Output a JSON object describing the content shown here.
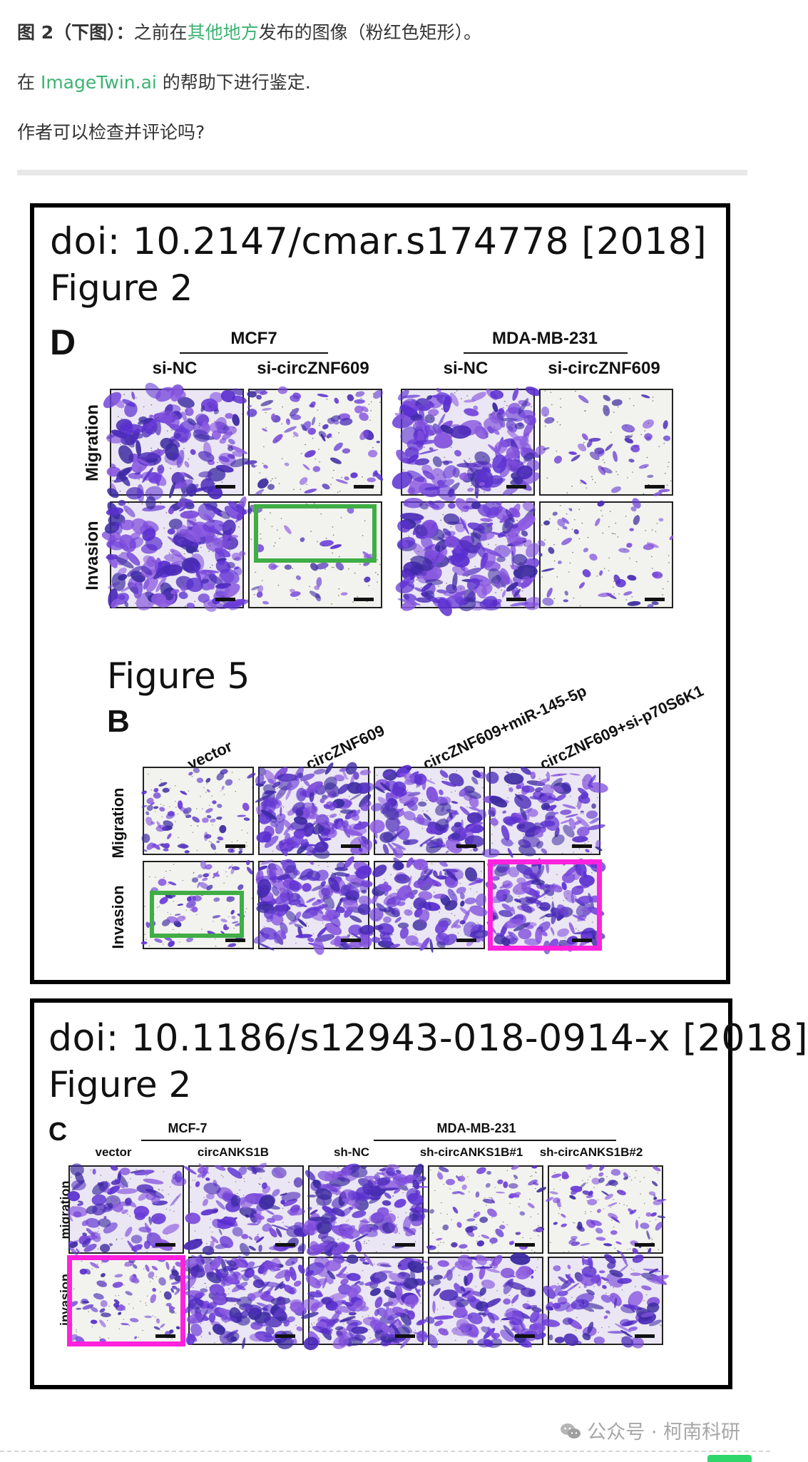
{
  "article": {
    "line1_bold": "图 2（下图）：",
    "line1_pre": "之前在",
    "line1_link": "其他地方",
    "line1_post": "发布的图像（粉红色矩形）。",
    "line2_pre": "在 ",
    "line2_link": "ImageTwin.ai",
    "line2_post": " 的帮助下进行鉴定.",
    "line3": "作者可以检查并评论吗?",
    "link_color": "#3cb371"
  },
  "panel1": {
    "doi": "doi: 10.2147/cmar.s174778 [2018]",
    "fig2_title": "Figure 2",
    "fig2_letter": "D",
    "groups": [
      "MCF7",
      "MDA-MB-231"
    ],
    "cols": [
      "si-NC",
      "si-circZNF609",
      "si-NC",
      "si-circZNF609"
    ],
    "rows": [
      "Migration",
      "Invasion"
    ],
    "fig5_title": "Figure 5",
    "fig5_letter": "B",
    "fig5_cols": [
      "vector",
      "circZNF609",
      "circZNF609+miR-145-5p",
      "circZNF609+si-p70S6K1"
    ],
    "fig5_rows": [
      "Migration",
      "Invasion"
    ]
  },
  "panel2": {
    "doi": "doi: 10.1186/s12943-018-0914-x [2018]",
    "fig_title": "Figure 2",
    "letter": "C",
    "groups": [
      "MCF-7",
      "MDA-MB-231"
    ],
    "cols": [
      "vector",
      "circANKS1B",
      "sh-NC",
      "sh-circANKS1B#1",
      "sh-circANKS1B#2"
    ],
    "rows": [
      "migration",
      "invasion"
    ]
  },
  "highlight_colors": {
    "green": "#3fae45",
    "pink": "#ff22dd"
  },
  "footer": {
    "watermark": "公众号 · 柯南科研",
    "icon": "wechat-icon"
  }
}
